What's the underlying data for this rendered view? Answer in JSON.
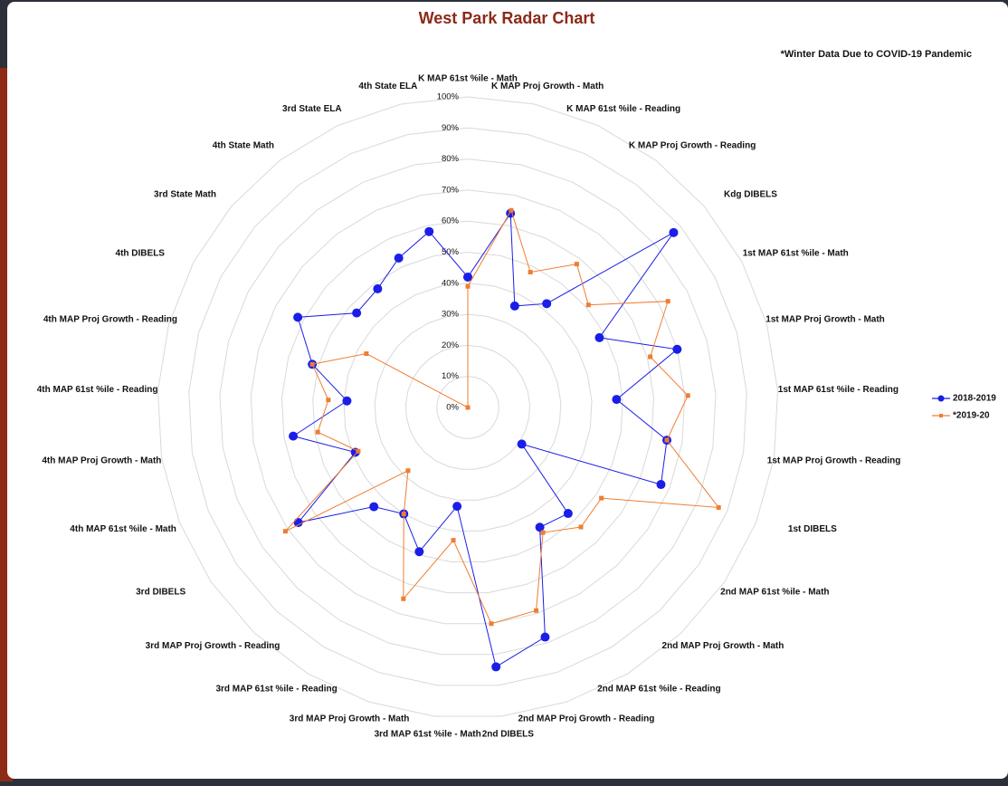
{
  "chart_data": {
    "type": "radar",
    "title": "West Park Radar Chart",
    "subtitle": "*Winter Data Due to COVID-19 Pandemic",
    "categories": [
      "K MAP 61st %ile - Math",
      "K MAP Proj Growth - Math",
      "K MAP 61st %ile - Reading",
      "K MAP Proj Growth - Reading",
      "Kdg DIBELS",
      "1st MAP 61st %ile - Math",
      "1st MAP Proj Growth - Math",
      "1st MAP 61st %ile - Reading",
      "1st MAP Proj Growth - Reading",
      "1st DIBELS",
      "2nd MAP 61st %ile - Math",
      "2nd MAP Proj Growth - Math",
      "2nd MAP 61st %ile - Reading",
      "2nd MAP Proj Growth - Reading",
      "2nd DIBELS",
      "3rd MAP 61st %ile - Math",
      "3rd MAP Proj Growth - Math",
      "3rd MAP 61st %ile - Reading",
      "3rd MAP Proj Growth - Reading",
      "3rd DIBELS",
      "4th MAP 61st %ile - Math",
      "4th MAP Proj Growth - Math",
      "4th MAP 61st %ile - Reading",
      "4th MAP Proj Growth - Reading",
      "4th DIBELS",
      "3rd State Math",
      "4th State Math",
      "3rd State ELA",
      "4th State ELA"
    ],
    "series": [
      {
        "name": "2018-2019",
        "color": "#1a1ee6",
        "marker": "circle",
        "values": [
          42,
          64,
          36,
          42,
          87,
          48,
          70,
          48,
          65,
          67,
          21,
          47,
          45,
          78,
          84,
          32,
          49,
          40,
          44,
          66,
          39,
          57,
          39,
          52,
          62,
          47,
          48,
          53,
          58
        ]
      },
      {
        "name": "*2019-20",
        "color": "#ef7d31",
        "marker": "square",
        "values": [
          39,
          65,
          48,
          58,
          51,
          73,
          61,
          71,
          65,
          87,
          52,
          53,
          47,
          69,
          70,
          43,
          65,
          40,
          28,
          71,
          38,
          49,
          45,
          52,
          37,
          0,
          0,
          0,
          0
        ]
      }
    ],
    "ylim": [
      0,
      100
    ],
    "yticks": [
      {
        "value": 0,
        "label": "0%"
      },
      {
        "value": 10,
        "label": "10%"
      },
      {
        "value": 20,
        "label": "20%"
      },
      {
        "value": 30,
        "label": "30%"
      },
      {
        "value": 40,
        "label": "40%"
      },
      {
        "value": 50,
        "label": "50%"
      },
      {
        "value": 60,
        "label": "60%"
      },
      {
        "value": 70,
        "label": "70%"
      },
      {
        "value": 80,
        "label": "80%"
      },
      {
        "value": 90,
        "label": "90%"
      },
      {
        "value": 100,
        "label": "100%"
      }
    ],
    "grid": true,
    "legend": "right"
  }
}
